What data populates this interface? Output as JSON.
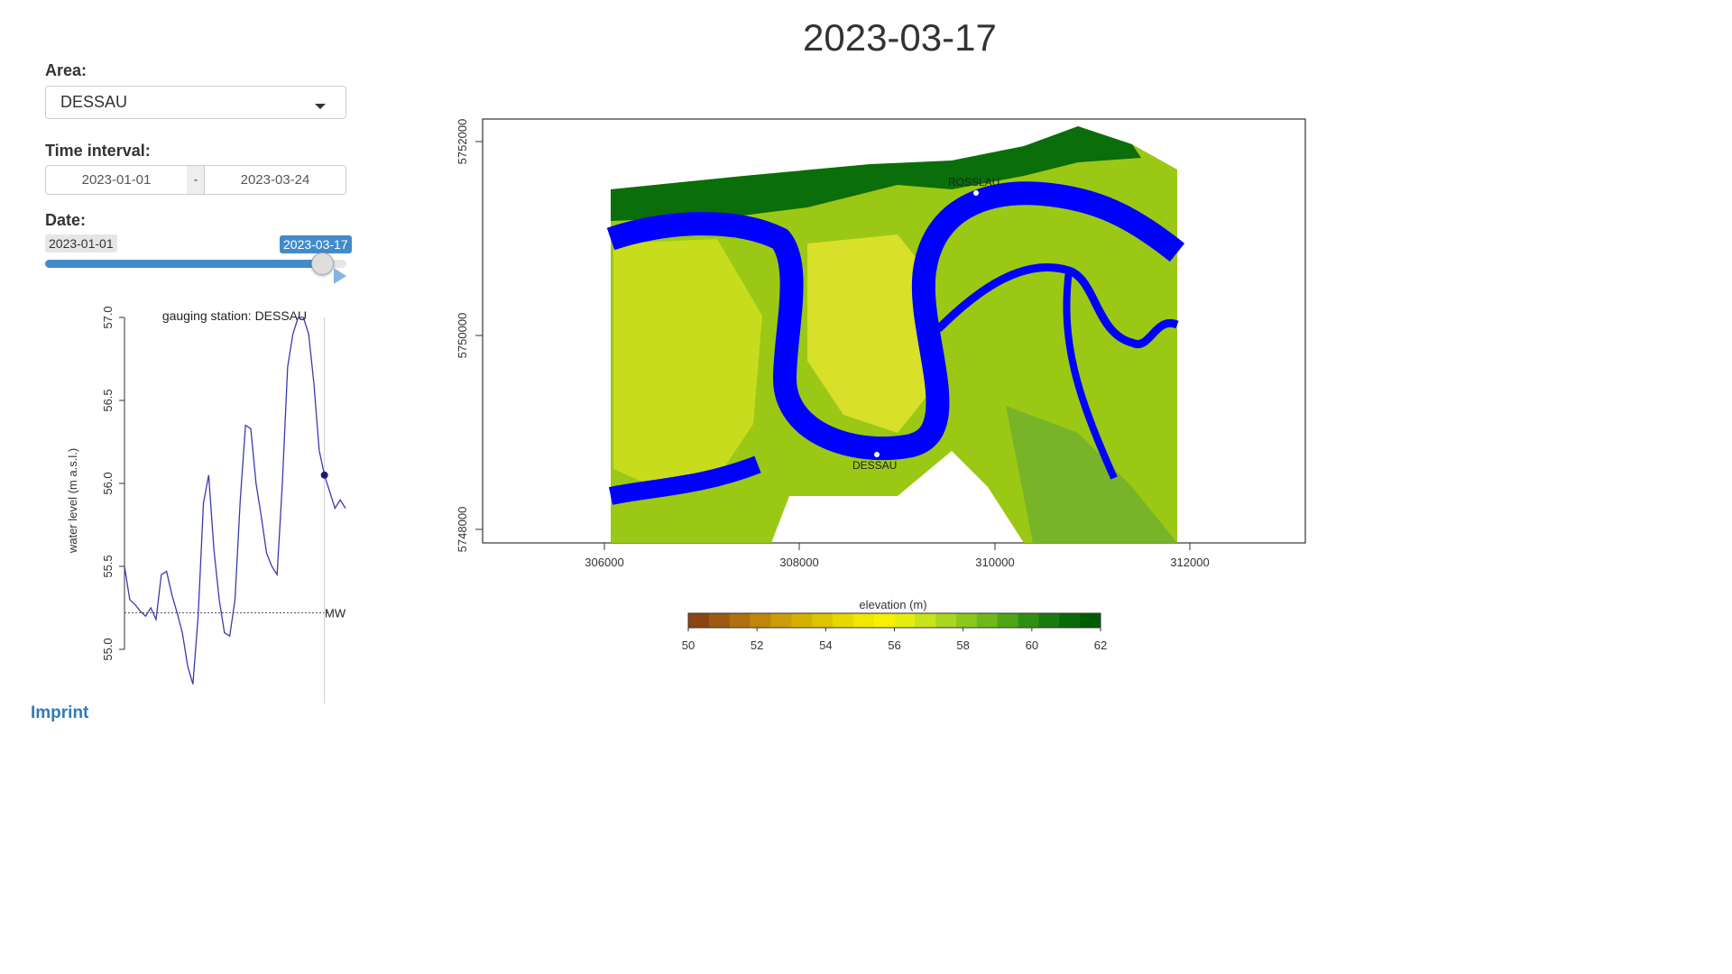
{
  "sidebar": {
    "area_label": "Area:",
    "area_value": "DESSAU",
    "interval_label": "Time interval:",
    "interval_start": "2023-01-01",
    "interval_sep": "-",
    "interval_end": "2023-03-24",
    "date_label": "Date:",
    "slider_min": "2023-01-01",
    "slider_current": "2023-03-17",
    "slider_progress": 0.92,
    "imprint_label": "Imprint"
  },
  "page_title": "2023-03-17",
  "hydrograph": {
    "title": "gauging station: DESSAU",
    "ylabel": "water level (m a.s.l.)",
    "mw_label": "MW",
    "yticks": [
      "55.0",
      "55.5",
      "56.0",
      "56.5",
      "57.0"
    ]
  },
  "map": {
    "xticks": [
      "306000",
      "308000",
      "310000",
      "312000"
    ],
    "yticks": [
      "5748000",
      "5750000",
      "5752000"
    ],
    "place_labels": [
      "ROSSLAU",
      "DESSAU"
    ],
    "colors": {
      "water": "#0000ff",
      "high": "#006400",
      "mid": "#9acd32",
      "low": "#d6d600"
    }
  },
  "legend": {
    "title": "elevation (m)",
    "ticks": [
      "50",
      "52",
      "54",
      "56",
      "58",
      "60",
      "62"
    ]
  },
  "chart_data": {
    "type": "line",
    "title": "gauging station: DESSAU",
    "xlabel": "",
    "ylabel": "water level (m a.s.l.)",
    "ylim": [
      54.75,
      57.1
    ],
    "x": [
      "2023-01-01",
      "2023-01-03",
      "2023-01-05",
      "2023-01-07",
      "2023-01-09",
      "2023-01-11",
      "2023-01-13",
      "2023-01-15",
      "2023-01-17",
      "2023-01-19",
      "2023-01-21",
      "2023-01-23",
      "2023-01-25",
      "2023-01-27",
      "2023-01-29",
      "2023-01-31",
      "2023-02-02",
      "2023-02-04",
      "2023-02-06",
      "2023-02-08",
      "2023-02-10",
      "2023-02-12",
      "2023-02-14",
      "2023-02-16",
      "2023-02-18",
      "2023-02-20",
      "2023-02-22",
      "2023-02-24",
      "2023-02-26",
      "2023-02-28",
      "2023-03-02",
      "2023-03-04",
      "2023-03-06",
      "2023-03-08",
      "2023-03-10",
      "2023-03-12",
      "2023-03-14",
      "2023-03-16",
      "2023-03-17",
      "2023-03-19",
      "2023-03-21",
      "2023-03-23",
      "2023-03-24"
    ],
    "series": [
      {
        "values": [
          55.5,
          55.3,
          55.27,
          55.23,
          55.2,
          55.25,
          55.18,
          55.45,
          55.47,
          55.33,
          55.22,
          55.1,
          54.9,
          54.79,
          55.2,
          55.88,
          56.05,
          55.6,
          55.3,
          55.1,
          55.08,
          55.3,
          55.9,
          56.35,
          56.33,
          56.0,
          55.8,
          55.58,
          55.5,
          55.45,
          56.0,
          56.7,
          56.9,
          57.0,
          57.0,
          56.9,
          56.6,
          56.2,
          56.05,
          55.95,
          55.85,
          55.9,
          55.85
        ]
      }
    ],
    "reference_lines": [
      {
        "label": "MW",
        "value": 55.22
      }
    ]
  }
}
